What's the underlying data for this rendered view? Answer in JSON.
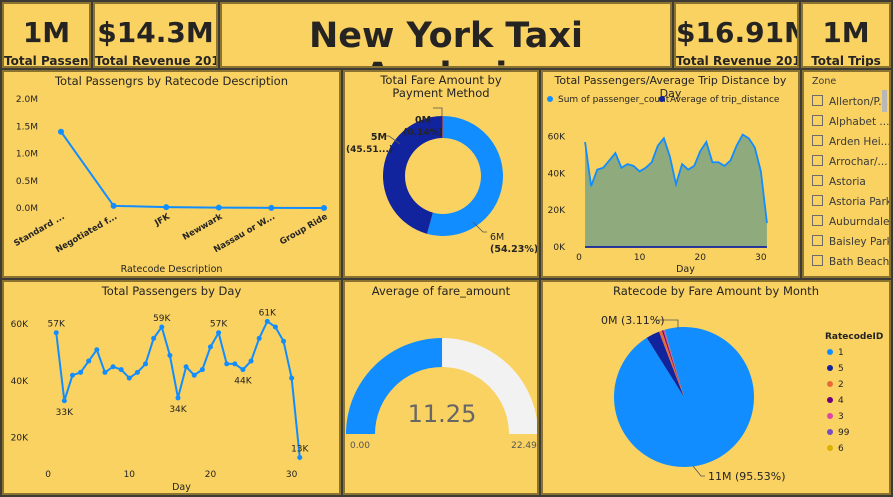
{
  "kpis": [
    {
      "value": "1M",
      "label": "Total Passen..."
    },
    {
      "value": "$14.3M",
      "label": "Total Revenue 2017"
    },
    {
      "value": "$16.91M",
      "label": "Total Revenue 2018"
    },
    {
      "value": "1M",
      "label": "Total Trips"
    }
  ],
  "header": {
    "title": "New York Taxi Analysis"
  },
  "slicer": {
    "title": "Zone",
    "items": [
      "Allerton/P...",
      "Alphabet ...",
      "Arden Hei...",
      "Arrochar/...",
      "Astoria",
      "Astoria Park",
      "Auburndale",
      "Baisley Park",
      "Bath Beach"
    ]
  },
  "chart_data": [
    {
      "type": "line",
      "title": "Total Passengrs by Ratecode Description",
      "xlabel": "Ratecode Description",
      "ylabel": "",
      "categories": [
        "Standard ...",
        "Negotiated f...",
        "JFK",
        "Newwark",
        "Nassau or W...",
        "Group Ride"
      ],
      "values": [
        1400000,
        40000,
        15000,
        8000,
        3000,
        500
      ],
      "ylim": [
        0,
        2000000
      ],
      "yticks": [
        "0.0M",
        "0.5M",
        "1.0M",
        "1.5M",
        "2.0M"
      ]
    },
    {
      "type": "pie",
      "title": "Total Fare Amount by Payment Method",
      "slices": [
        {
          "value": 54.23,
          "label": "6M",
          "pct": "(54.23%)",
          "color": "#118dff"
        },
        {
          "value": 45.51,
          "label": "5M",
          "pct": "(45.51...)",
          "color": "#12239e"
        },
        {
          "value": 0.14,
          "label": "0M",
          "pct": "(0.14%)",
          "color": "#e66c37"
        }
      ]
    },
    {
      "type": "area",
      "title": "Total Passengers/Average Trip Distance by Day",
      "xlabel": "Day",
      "legend": [
        {
          "name": "Sum of passenger_count",
          "color": "#118dff"
        },
        {
          "name": "Average of trip_distance",
          "color": "#12239e"
        }
      ],
      "series": [
        {
          "name": "Sum of passenger_count",
          "x": [
            1,
            2,
            3,
            4,
            5,
            6,
            7,
            8,
            9,
            10,
            11,
            12,
            13,
            14,
            15,
            16,
            17,
            18,
            19,
            20,
            21,
            22,
            23,
            24,
            25,
            26,
            27,
            28,
            29,
            30,
            31
          ],
          "values": [
            57000,
            33000,
            42000,
            43000,
            47000,
            51000,
            43000,
            45000,
            44000,
            41000,
            43000,
            46000,
            55000,
            59000,
            49000,
            34000,
            45000,
            42000,
            44000,
            52000,
            57000,
            46000,
            46000,
            44000,
            47000,
            55000,
            61000,
            59000,
            54000,
            41000,
            13000
          ]
        },
        {
          "name": "Average of trip_distance",
          "x": [
            1,
            31
          ],
          "values": [
            3,
            3
          ]
        }
      ],
      "xlim": [
        0,
        32
      ],
      "ylim": [
        0,
        70000
      ],
      "xticks": [
        "0",
        "10",
        "20",
        "30"
      ],
      "yticks": [
        "0K",
        "20K",
        "40K",
        "60K"
      ]
    },
    {
      "type": "line",
      "title": "Total Passengers by Day",
      "xlabel": "Day",
      "x": [
        1,
        2,
        3,
        4,
        5,
        6,
        7,
        8,
        9,
        10,
        11,
        12,
        13,
        14,
        15,
        16,
        17,
        18,
        19,
        20,
        21,
        22,
        23,
        24,
        25,
        26,
        27,
        28,
        29,
        30,
        31
      ],
      "values": [
        57000,
        33000,
        42000,
        43000,
        47000,
        51000,
        43000,
        45000,
        44000,
        41000,
        43000,
        46000,
        55000,
        59000,
        49000,
        34000,
        45000,
        42000,
        44000,
        52000,
        57000,
        46000,
        46000,
        44000,
        47000,
        55000,
        61000,
        59000,
        54000,
        41000,
        13000
      ],
      "data_labels": [
        {
          "x": 1,
          "text": "57K"
        },
        {
          "x": 2,
          "text": "33K"
        },
        {
          "x": 14,
          "text": "59K"
        },
        {
          "x": 16,
          "text": "34K"
        },
        {
          "x": 21,
          "text": "57K"
        },
        {
          "x": 24,
          "text": "44K"
        },
        {
          "x": 27,
          "text": "61K"
        },
        {
          "x": 31,
          "text": "13K"
        }
      ],
      "xlim": [
        -1,
        33
      ],
      "ylim": [
        10000,
        65000
      ],
      "xticks": [
        "0",
        "10",
        "20",
        "30"
      ],
      "yticks": [
        "20K",
        "40K",
        "60K"
      ]
    },
    {
      "type": "gauge",
      "title": "Average of fare_amount",
      "value": 11.25,
      "value_label": "11.25",
      "min": 0,
      "max": 22.49,
      "min_label": "0.00",
      "max_label": "22.49",
      "fill_color": "#118dff",
      "track_color": "#f2f2f2"
    },
    {
      "type": "pie",
      "title": "Ratecode by Fare Amount by Month",
      "legend_title": "RatecodeID",
      "slices": [
        {
          "name": "1",
          "value": 95.53,
          "color": "#118dff"
        },
        {
          "name": "5",
          "value": 3.11,
          "color": "#12239e"
        },
        {
          "name": "2",
          "value": 0.7,
          "color": "#e66c37"
        },
        {
          "name": "4",
          "value": 0.3,
          "color": "#6b007b"
        },
        {
          "name": "3",
          "value": 0.2,
          "color": "#e044a7"
        },
        {
          "name": "99",
          "value": 0.1,
          "color": "#744ec2"
        },
        {
          "name": "6",
          "value": 0.05,
          "color": "#d9b300"
        }
      ],
      "labels": {
        "big": "11M (95.53%)",
        "small": "0M (3.11%)"
      }
    }
  ]
}
